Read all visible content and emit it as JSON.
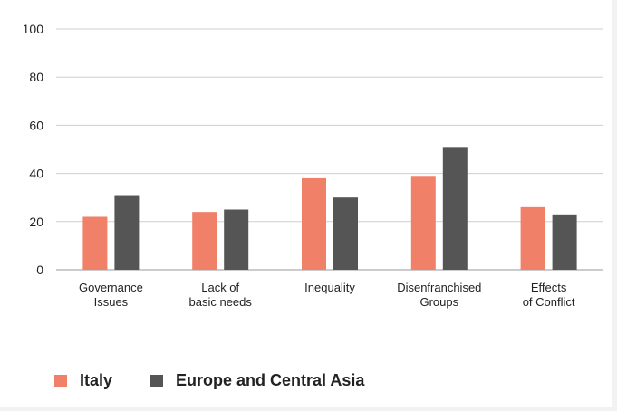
{
  "chart_data": {
    "type": "bar",
    "categories": [
      [
        "Governance",
        "Issues"
      ],
      [
        "Lack of",
        "basic needs"
      ],
      [
        "Inequality"
      ],
      [
        "Disenfranchised",
        "Groups"
      ],
      [
        "Effects",
        "of Conflict"
      ]
    ],
    "series": [
      {
        "name": "Italy",
        "color": "#f08068",
        "values": [
          22,
          24,
          38,
          39,
          26
        ]
      },
      {
        "name": "Europe and Central Asia",
        "color": "#555555",
        "values": [
          31,
          25,
          30,
          51,
          23
        ]
      }
    ],
    "ylim": [
      0,
      100
    ],
    "yticks": [
      0,
      20,
      40,
      60,
      80,
      100
    ],
    "grid": true,
    "legend_position": "bottom-left"
  }
}
